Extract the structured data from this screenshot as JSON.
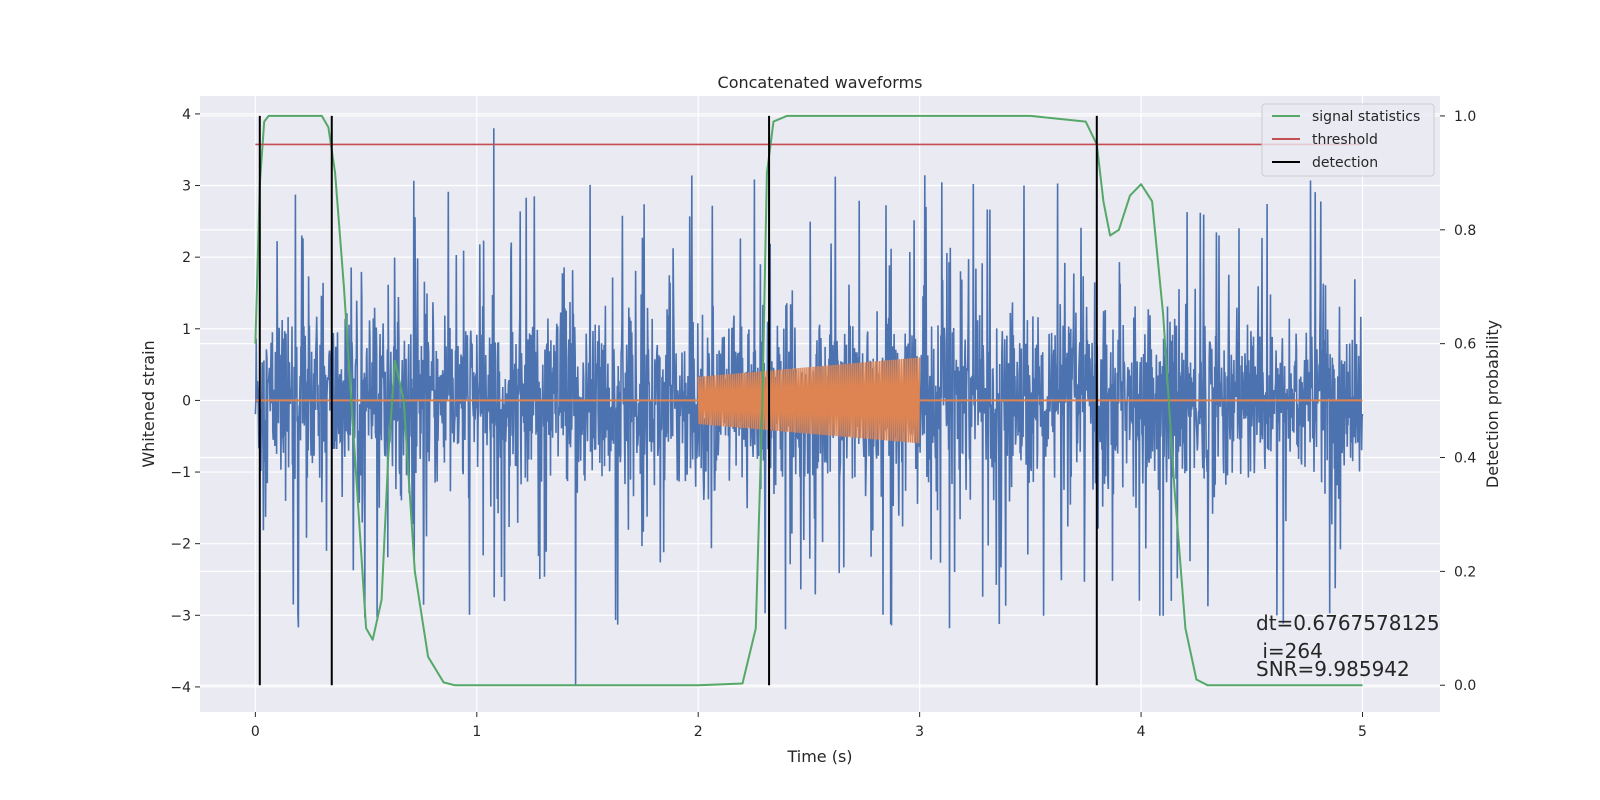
{
  "chart_data": {
    "type": "line",
    "title": "Concatenated waveforms",
    "xlabel": "Time (s)",
    "ylabel_left": "Whitened strain",
    "ylabel_right": "Detection probability",
    "xlim": [
      -0.25,
      5.35
    ],
    "ylim_left": [
      -4.35,
      4.25
    ],
    "ylim_right": [
      -0.047,
      1.035
    ],
    "x_ticks": [
      0,
      1,
      2,
      3,
      4,
      5
    ],
    "x_tick_labels": [
      "0",
      "1",
      "2",
      "3",
      "4",
      "5"
    ],
    "y_left_ticks": [
      -4,
      -3,
      -2,
      -1,
      0,
      1,
      2,
      3,
      4
    ],
    "y_left_tick_labels": [
      "−4",
      "−3",
      "−2",
      "−1",
      "0",
      "1",
      "2",
      "3",
      "4"
    ],
    "y_right_ticks": [
      0.0,
      0.2,
      0.4,
      0.6,
      0.8,
      1.0
    ],
    "y_right_tick_labels": [
      "0.0",
      "0.2",
      "0.4",
      "0.6",
      "0.8",
      "1.0"
    ],
    "grid": true,
    "legend_position": "top-right",
    "colors": {
      "strain": "#4c72b0",
      "injection": "#dd8452",
      "signal_statistics": "#55a868",
      "threshold": "#c44e52",
      "detection": "#000000",
      "plot_bg": "#eaeaf2",
      "grid": "#ffffff"
    },
    "series": [
      {
        "name": "whitened strain",
        "axis": "left",
        "x_range": [
          0,
          5
        ],
        "envelope_std": 0.62,
        "peaks_max": 3.8,
        "peaks_min": -3.97
      },
      {
        "name": "injected waveform",
        "axis": "left",
        "x_range": [
          2.0,
          3.0
        ],
        "amplitude_start": 0.33,
        "amplitude_end": 0.6
      },
      {
        "name": "signal statistics",
        "axis": "right",
        "x": [
          0.0,
          0.02,
          0.04,
          0.06,
          0.1,
          0.2,
          0.3,
          0.33,
          0.36,
          0.4,
          0.45,
          0.5,
          0.53,
          0.57,
          0.6,
          0.63,
          0.67,
          0.72,
          0.78,
          0.85,
          0.9,
          1.0,
          1.5,
          2.0,
          2.2,
          2.26,
          2.29,
          2.31,
          2.34,
          2.4,
          2.5,
          3.0,
          3.5,
          3.75,
          3.8,
          3.83,
          3.86,
          3.9,
          3.95,
          4.0,
          4.05,
          4.1,
          4.15,
          4.2,
          4.25,
          4.3,
          4.5,
          5.0
        ],
        "values": [
          0.6,
          0.88,
          0.99,
          1.0,
          1.0,
          1.0,
          1.0,
          0.98,
          0.9,
          0.7,
          0.4,
          0.1,
          0.08,
          0.15,
          0.4,
          0.57,
          0.5,
          0.2,
          0.05,
          0.005,
          0.0,
          0.0,
          0.0,
          0.0,
          0.003,
          0.1,
          0.5,
          0.9,
          0.99,
          1.0,
          1.0,
          1.0,
          1.0,
          0.99,
          0.95,
          0.85,
          0.79,
          0.8,
          0.86,
          0.88,
          0.85,
          0.65,
          0.35,
          0.1,
          0.01,
          0.0,
          0.0,
          0.0
        ]
      },
      {
        "name": "threshold",
        "axis": "right",
        "x_range": [
          0,
          5
        ],
        "value": 0.95
      },
      {
        "name": "detection",
        "axis": "right",
        "type": "vlines",
        "x": [
          0.02,
          0.345,
          2.32,
          3.8
        ],
        "y_range": [
          0,
          1
        ]
      }
    ],
    "legend": [
      {
        "label": "signal statistics",
        "color_key": "signal_statistics"
      },
      {
        "label": "threshold",
        "color_key": "threshold"
      },
      {
        "label": "detection",
        "color_key": "detection"
      }
    ],
    "annotations": [
      {
        "text": "dt=0.6767578125"
      },
      {
        "text": " i=264"
      },
      {
        "text": "SNR=9.985942"
      }
    ]
  }
}
